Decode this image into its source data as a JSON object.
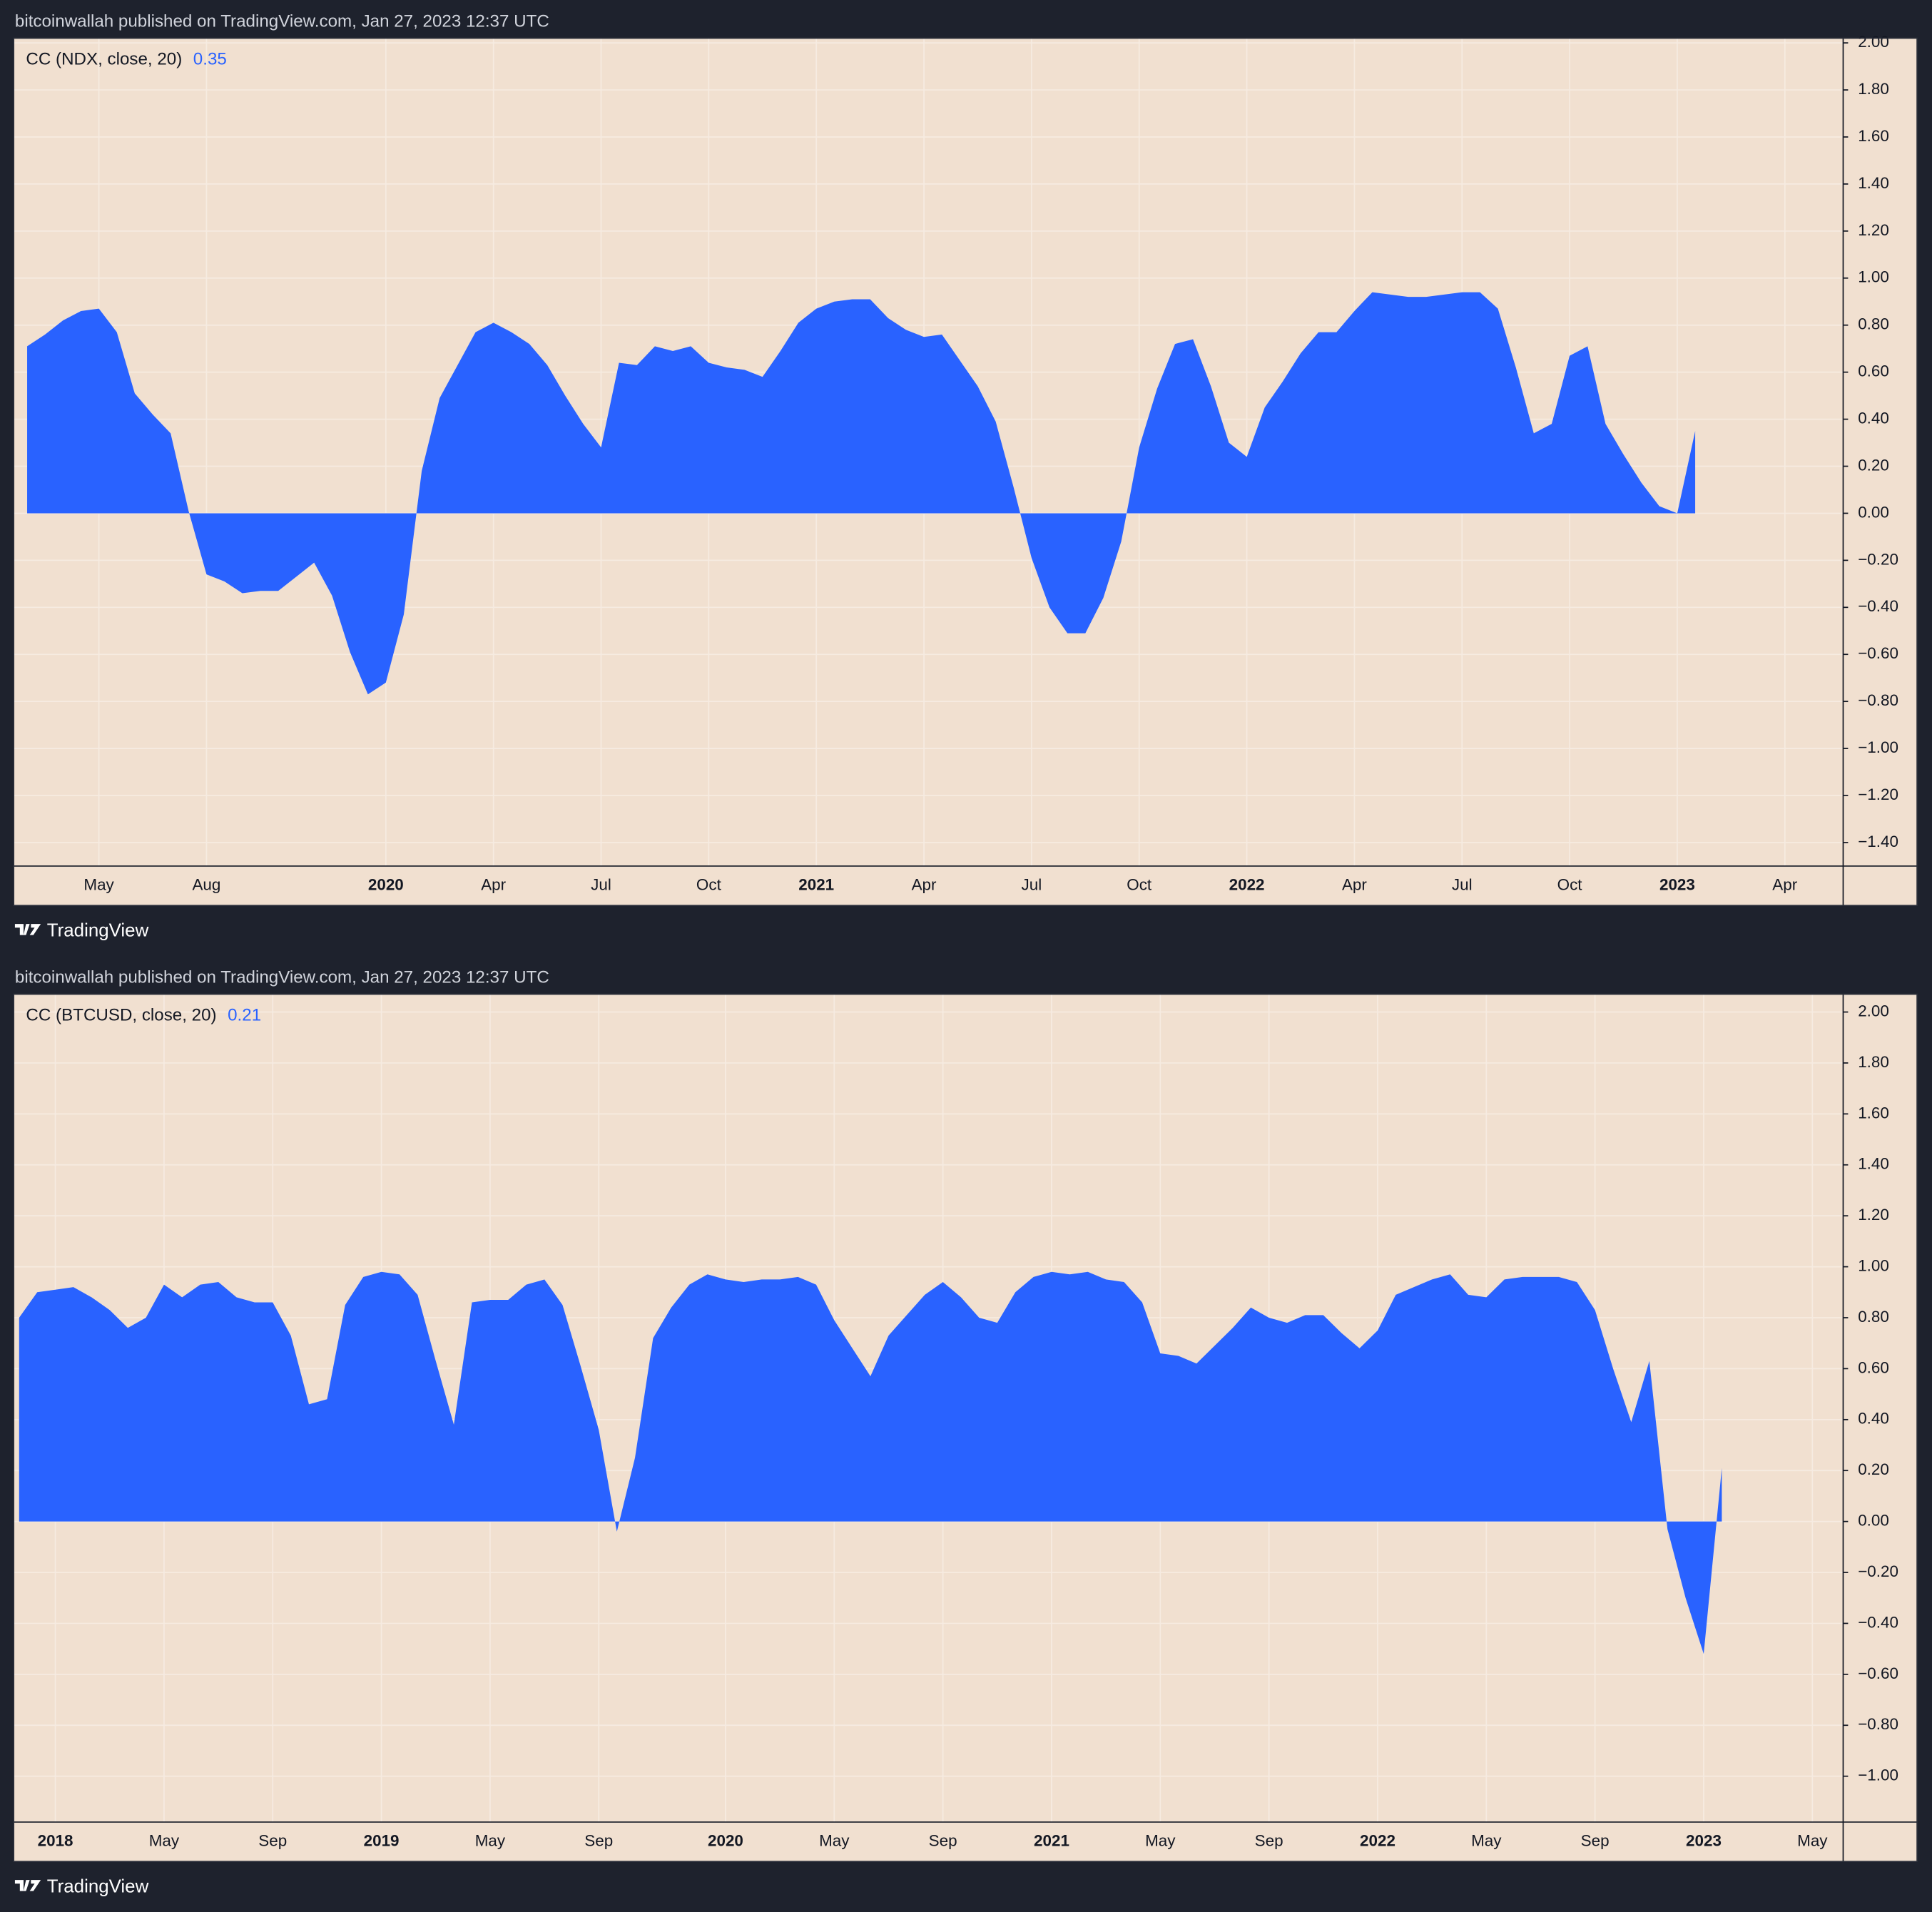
{
  "panels": [
    {
      "published": "bitcoinwallah published on TradingView.com, Jan 27, 2023 12:37 UTC",
      "brand": "TradingView"
    },
    {
      "published": "bitcoinwallah published on TradingView.com, Jan 27, 2023 12:37 UTC",
      "brand": "TradingView"
    }
  ],
  "chart_data": [
    {
      "type": "area",
      "title": "CC (NDX, close, 20)",
      "last_value": 0.35,
      "color": "#2962ff",
      "grid": true,
      "categories": [
        null,
        null,
        null,
        null,
        "May",
        null,
        null,
        null,
        null,
        null,
        "Aug",
        null,
        null,
        null,
        null,
        null,
        null,
        null,
        null,
        null,
        "2020",
        null,
        null,
        null,
        null,
        null,
        "Apr",
        null,
        null,
        null,
        null,
        null,
        "Jul",
        null,
        null,
        null,
        null,
        null,
        "Oct",
        null,
        null,
        null,
        null,
        null,
        "2021",
        null,
        null,
        null,
        null,
        null,
        "Apr",
        null,
        null,
        null,
        null,
        null,
        "Jul",
        null,
        null,
        null,
        null,
        null,
        "Oct",
        null,
        null,
        null,
        null,
        null,
        "2022",
        null,
        null,
        null,
        null,
        null,
        "Apr",
        null,
        null,
        null,
        null,
        null,
        "Jul",
        null,
        null,
        null,
        null,
        null,
        "Oct",
        null,
        null,
        null,
        null,
        null,
        "2023",
        null,
        null,
        null,
        null,
        null,
        "Apr",
        null,
        null,
        null
      ],
      "values": [
        0.71,
        0.76,
        0.82,
        0.86,
        0.87,
        0.77,
        0.51,
        0.42,
        0.34,
        0.01,
        -0.26,
        -0.29,
        -0.34,
        -0.33,
        -0.33,
        -0.27,
        -0.21,
        -0.35,
        -0.59,
        -0.77,
        -0.72,
        -0.43,
        0.18,
        0.49,
        0.63,
        0.77,
        0.81,
        0.77,
        0.72,
        0.63,
        0.5,
        0.38,
        0.28,
        0.64,
        0.63,
        0.71,
        0.69,
        0.71,
        0.64,
        0.62,
        0.61,
        0.58,
        0.69,
        0.81,
        0.87,
        0.9,
        0.91,
        0.91,
        0.83,
        0.78,
        0.75,
        0.76,
        0.65,
        0.54,
        0.39,
        0.11,
        -0.19,
        -0.4,
        -0.51,
        -0.51,
        -0.36,
        -0.12,
        0.28,
        0.53,
        0.72,
        0.74,
        0.54,
        0.3,
        0.24,
        0.45,
        0.56,
        0.68,
        0.77,
        0.77,
        0.86,
        0.94,
        0.93,
        0.92,
        0.92,
        0.93,
        0.94,
        0.94,
        0.87,
        0.62,
        0.34,
        0.38,
        0.67,
        0.71,
        0.38,
        0.25,
        0.13,
        0.03,
        0.0,
        0.35,
        null,
        null,
        null,
        null,
        null,
        null,
        null,
        null
      ],
      "ylim": [
        -1.5,
        2.02
      ],
      "yticks": [
        {
          "value": 2,
          "label": "2.00"
        },
        {
          "value": 1.8,
          "label": "1.80"
        },
        {
          "value": 1.6,
          "label": "1.60"
        },
        {
          "value": 1.4,
          "label": "1.40"
        },
        {
          "value": 1.2,
          "label": "1.20"
        },
        {
          "value": 1,
          "label": "1.00"
        },
        {
          "value": 0.8,
          "label": "0.80"
        },
        {
          "value": 0.6,
          "label": "0.60"
        },
        {
          "value": 0.4,
          "label": "0.40"
        },
        {
          "value": 0.2,
          "label": "0.20"
        },
        {
          "value": 0,
          "label": "0.00"
        },
        {
          "value": -0.2,
          "label": "−0.20"
        },
        {
          "value": -0.4,
          "label": "−0.40"
        },
        {
          "value": -0.6,
          "label": "−0.60"
        },
        {
          "value": -0.8,
          "label": "−0.80"
        },
        {
          "value": -1,
          "label": "−1.00"
        },
        {
          "value": -1.2,
          "label": "−1.20"
        },
        {
          "value": -1.4,
          "label": "−1.40"
        }
      ]
    },
    {
      "type": "area",
      "title": "CC (BTCUSD, close, 20)",
      "last_value": 0.21,
      "color": "#2962ff",
      "grid": true,
      "categories": [
        null,
        null,
        "2018",
        null,
        null,
        null,
        null,
        null,
        "May",
        null,
        null,
        null,
        null,
        null,
        "Sep",
        null,
        null,
        null,
        null,
        null,
        "2019",
        null,
        null,
        null,
        null,
        null,
        "May",
        null,
        null,
        null,
        null,
        null,
        "Sep",
        null,
        null,
        null,
        null,
        null,
        null,
        "2020",
        null,
        null,
        null,
        null,
        null,
        "May",
        null,
        null,
        null,
        null,
        null,
        "Sep",
        null,
        null,
        null,
        null,
        null,
        "2021",
        null,
        null,
        null,
        null,
        null,
        "May",
        null,
        null,
        null,
        null,
        null,
        "Sep",
        null,
        null,
        null,
        null,
        null,
        "2022",
        null,
        null,
        null,
        null,
        null,
        "May",
        null,
        null,
        null,
        null,
        null,
        "Sep",
        null,
        null,
        null,
        null,
        null,
        "2023",
        null,
        null,
        null,
        null,
        null,
        "May",
        null
      ],
      "values": [
        0.8,
        0.9,
        0.91,
        0.92,
        0.88,
        0.83,
        0.76,
        0.8,
        0.93,
        0.88,
        0.93,
        0.94,
        0.88,
        0.86,
        0.86,
        0.73,
        0.46,
        0.48,
        0.85,
        0.96,
        0.98,
        0.97,
        0.89,
        0.63,
        0.38,
        0.86,
        0.87,
        0.87,
        0.93,
        0.95,
        0.85,
        0.61,
        0.36,
        -0.04,
        0.25,
        0.72,
        0.84,
        0.93,
        0.97,
        0.95,
        0.94,
        0.95,
        0.95,
        0.96,
        0.93,
        0.79,
        0.68,
        0.57,
        0.73,
        0.81,
        0.89,
        0.94,
        0.88,
        0.8,
        0.78,
        0.9,
        0.96,
        0.98,
        0.97,
        0.98,
        0.95,
        0.94,
        0.86,
        0.66,
        0.65,
        0.62,
        0.69,
        0.76,
        0.84,
        0.8,
        0.78,
        0.81,
        0.81,
        0.74,
        0.68,
        0.75,
        0.89,
        0.92,
        0.95,
        0.97,
        0.89,
        0.88,
        0.95,
        0.96,
        0.96,
        0.96,
        0.94,
        0.83,
        0.6,
        0.39,
        0.63,
        -0.03,
        -0.3,
        -0.52,
        0.21,
        null,
        null,
        null,
        null,
        null,
        null
      ],
      "ylim": [
        -1.18,
        2.07
      ],
      "yticks": [
        {
          "value": 2,
          "label": "2.00"
        },
        {
          "value": 1.8,
          "label": "1.80"
        },
        {
          "value": 1.6,
          "label": "1.60"
        },
        {
          "value": 1.4,
          "label": "1.40"
        },
        {
          "value": 1.2,
          "label": "1.20"
        },
        {
          "value": 1,
          "label": "1.00"
        },
        {
          "value": 0.8,
          "label": "0.80"
        },
        {
          "value": 0.6,
          "label": "0.60"
        },
        {
          "value": 0.4,
          "label": "0.40"
        },
        {
          "value": 0.2,
          "label": "0.20"
        },
        {
          "value": 0,
          "label": "0.00"
        },
        {
          "value": -0.2,
          "label": "−0.20"
        },
        {
          "value": -0.4,
          "label": "−0.40"
        },
        {
          "value": -0.6,
          "label": "−0.60"
        },
        {
          "value": -0.8,
          "label": "−0.80"
        },
        {
          "value": -1,
          "label": "−1.00"
        }
      ]
    }
  ]
}
